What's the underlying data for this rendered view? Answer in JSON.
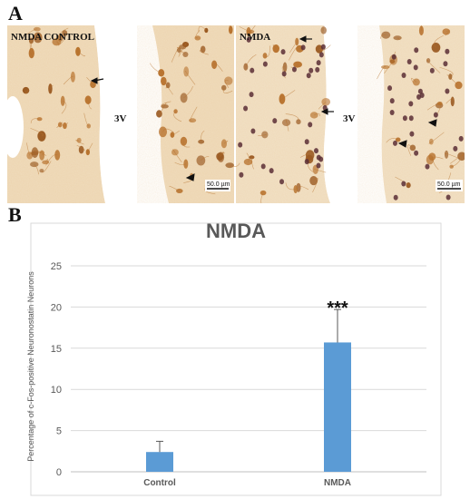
{
  "figure": {
    "panel_a_letter": "A",
    "panel_b_letter": "B"
  },
  "micrograph": {
    "label_control": "NMDA CONTROL",
    "label_nmda": "NMDA",
    "ventricle_label_1": "3V",
    "ventricle_label_2": "3V",
    "scale_bar_1": "50.0 µm",
    "scale_bar_2": "50.0 µm",
    "colors": {
      "stain": "#b8732e",
      "background": "#f3e3c9",
      "nucleus": "#5b2e35"
    }
  },
  "chart_data": {
    "type": "bar",
    "title": "NMDA",
    "xlabel": "",
    "ylabel": "Percentage of c-Fos-positive Neuronostatin Neurons",
    "categories": [
      "Control",
      "NMDA"
    ],
    "values": [
      2.4,
      15.7
    ],
    "error": [
      1.3,
      4.0
    ],
    "ylim": [
      0,
      25
    ],
    "yticks": [
      "0",
      "5",
      "10",
      "15",
      "20",
      "25"
    ],
    "significance": [
      "",
      "***"
    ],
    "grid": true,
    "bar_color": "#5b9bd5"
  }
}
